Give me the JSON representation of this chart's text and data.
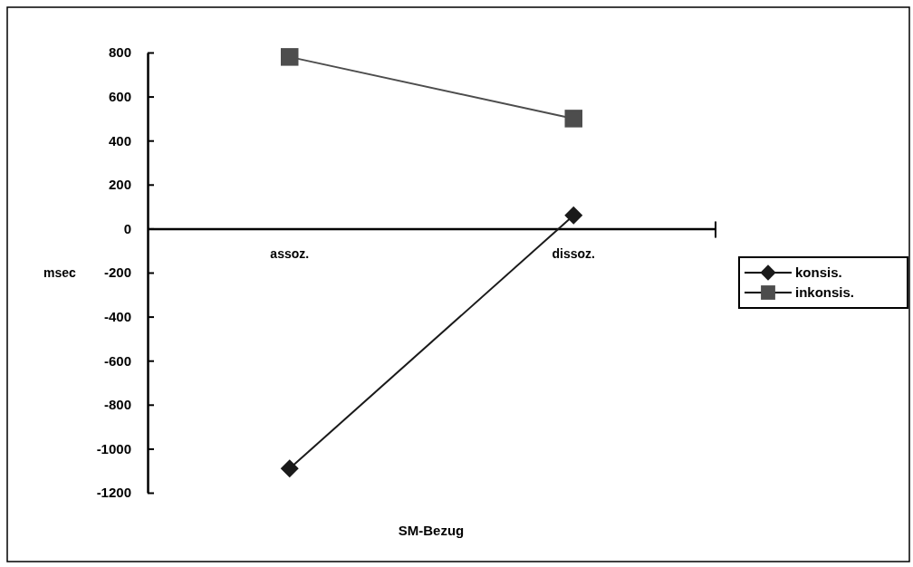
{
  "chart_data": {
    "type": "line",
    "xlabel": "SM-Bezug",
    "ylabel": "msec",
    "categories": [
      "assoz.",
      "dissoz."
    ],
    "series": [
      {
        "name": "konsis.",
        "color": "#1a1a1a",
        "marker": "diamond",
        "values": [
          -1090,
          60
        ]
      },
      {
        "name": "inkonsis.",
        "color": "#4d4d4d",
        "marker": "square",
        "values": [
          780,
          500
        ]
      }
    ],
    "ylim": [
      -1200,
      800
    ],
    "yticks": [
      -1200,
      -1000,
      -800,
      -600,
      -400,
      -200,
      0,
      200,
      400,
      600,
      800
    ],
    "legend": "right",
    "line_style": "solid"
  }
}
